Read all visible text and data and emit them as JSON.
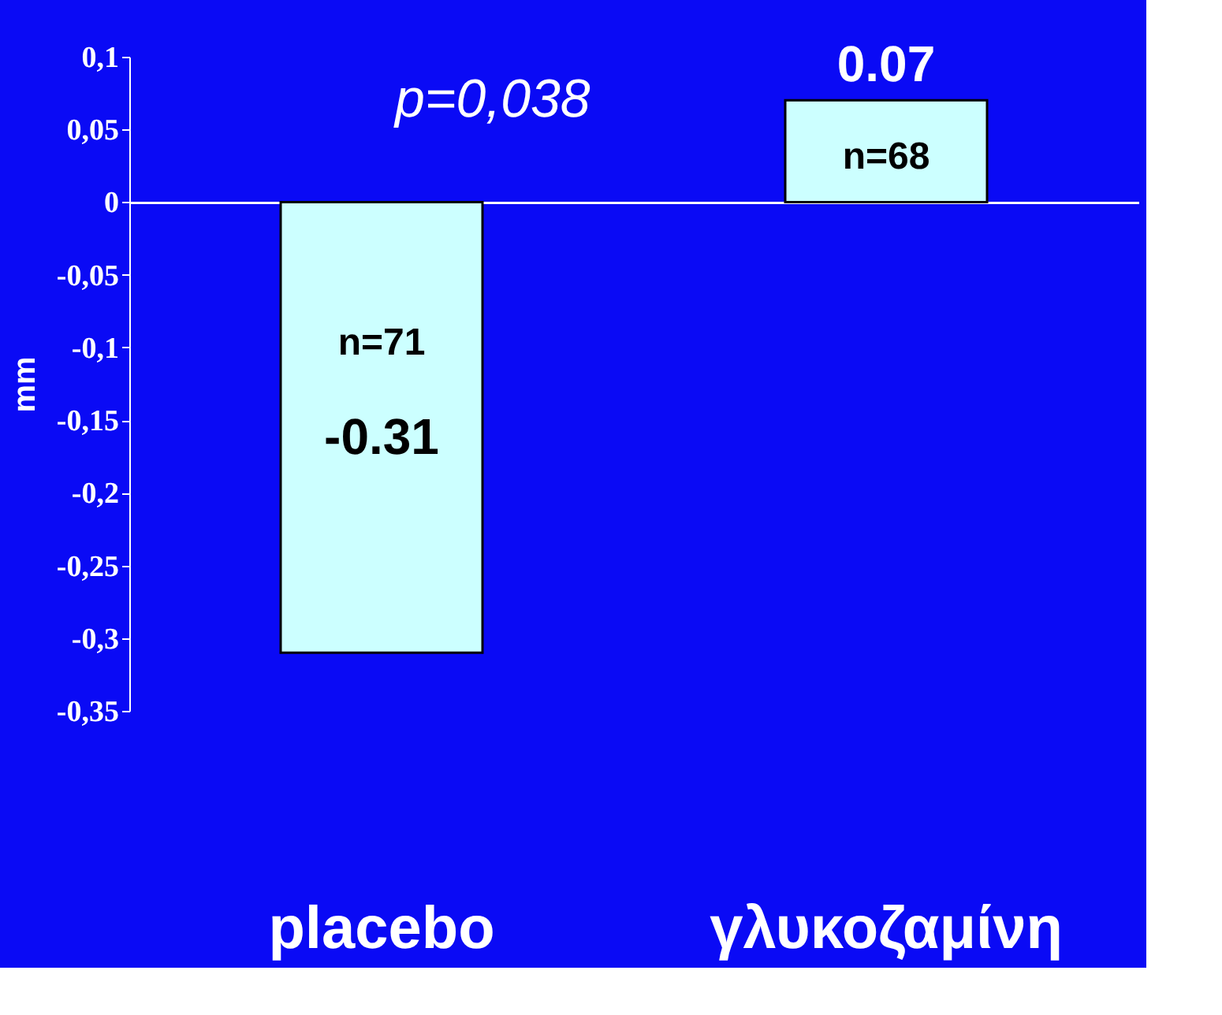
{
  "chart_data": {
    "type": "bar",
    "categories": [
      "placebo",
      "γλυκοζαμίνη"
    ],
    "values": [
      -0.31,
      0.07
    ],
    "color": "#ccffff",
    "ylabel": "mm",
    "ylim": [
      -0.35,
      0.1
    ],
    "yticks": [
      {
        "value": 0.1,
        "label": "0,1"
      },
      {
        "value": 0.05,
        "label": "0,05"
      },
      {
        "value": 0,
        "label": "0"
      },
      {
        "value": -0.05,
        "label": "-0,05"
      },
      {
        "value": -0.1,
        "label": "-0,1"
      },
      {
        "value": -0.15,
        "label": "-0,15"
      },
      {
        "value": -0.2,
        "label": "-0,2"
      },
      {
        "value": -0.25,
        "label": "-0,25"
      },
      {
        "value": -0.3,
        "label": "-0,3"
      },
      {
        "value": -0.35,
        "label": "-0,35"
      }
    ],
    "data_labels": true,
    "annotations": [
      "p=0,038",
      "n=71",
      "n=68"
    ]
  }
}
